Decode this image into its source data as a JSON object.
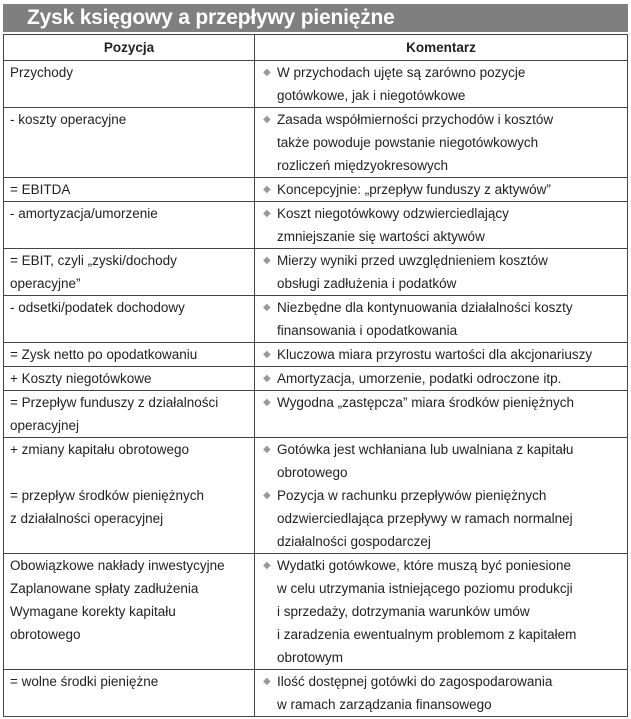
{
  "title": "Zysk księgowy a przepływy pieniężne",
  "columns": [
    "Pozycja",
    "Komentarz"
  ],
  "bullet_icon": "diamond",
  "rows": [
    {
      "left": [
        " Przychody"
      ],
      "right": [
        [
          "W przychodach ujęte są zarówno pozycje",
          "gotówkowe, jak i niegotówkowe"
        ]
      ]
    },
    {
      "left": [
        " - koszty operacyjne"
      ],
      "right": [
        [
          "Zasada współmierności przychodów i kosztów",
          "także powoduje powstanie niegotówkowych",
          "rozliczeń międzyokresowych"
        ]
      ]
    },
    {
      "left": [
        " = EBITDA"
      ],
      "right": [
        [
          "Koncepcyjnie: „przepływ funduszy z aktywów”"
        ]
      ]
    },
    {
      "left": [
        "- amortyzacja/umorzenie"
      ],
      "right": [
        [
          "Koszt niegotówkowy odzwierciedlający",
          "zmniejszanie się wartości aktywów"
        ]
      ]
    },
    {
      "left": [
        "= EBIT, czyli „zyski/dochody",
        "operacyjne”"
      ],
      "right": [
        [
          "Mierzy wyniki przed uwzględnieniem kosztów",
          "obsługi zadłużenia i podatków"
        ]
      ]
    },
    {
      "left": [
        "- odsetki/podatek dochodowy"
      ],
      "right": [
        [
          "Niezbędne dla kontynuowania działalności koszty",
          "finansowania i opodatkowania"
        ]
      ]
    },
    {
      "left": [
        "= Zysk netto po opodatkowaniu"
      ],
      "right": [
        [
          "Kluczowa miara przyrostu wartości dla akcjonariuszy"
        ]
      ]
    },
    {
      "left": [
        "+ Koszty niegotówkowe"
      ],
      "right": [
        [
          "Amortyzacja, umorzenie, podatki odroczone itp."
        ]
      ]
    },
    {
      "left": [
        "= Przepływ funduszy z działalności",
        "operacyjnej"
      ],
      "right": [
        [
          "Wygodna „zastępcza” miara środków pieniężnych"
        ]
      ]
    },
    {
      "left": [
        "+ zmiany kapitału obrotowego",
        "",
        "= przepływ środków pieniężnych",
        "z działalności operacyjnej"
      ],
      "right": [
        [
          "Gotówka jest wchłaniana lub uwalniana z kapitału",
          "obrotowego"
        ],
        [
          "Pozycja w rachunku przepływów pieniężnych",
          "odzwierciedlająca przepływy w ramach normalnej",
          "działalności gospodarczej"
        ]
      ]
    },
    {
      "left": [
        "Obowiązkowe nakłady inwestycyjne",
        "Zaplanowane spłaty zadłużenia",
        "Wymagane korekty kapitału",
        "obrotowego"
      ],
      "right": [
        [
          "Wydatki gotówkowe, które muszą być poniesione",
          "w celu utrzymania istniejącego poziomu produkcji",
          "i sprzedaży, dotrzymania warunków umów",
          "i zaradzenia ewentualnym problemom z kapitałem",
          "obrotowym"
        ]
      ]
    },
    {
      "left": [
        "= wolne środki pieniężne"
      ],
      "right": [
        [
          "Ilość dostępnej gotówki do zagospodarowania",
          "w ramach zarządzania finansowego"
        ]
      ]
    }
  ]
}
